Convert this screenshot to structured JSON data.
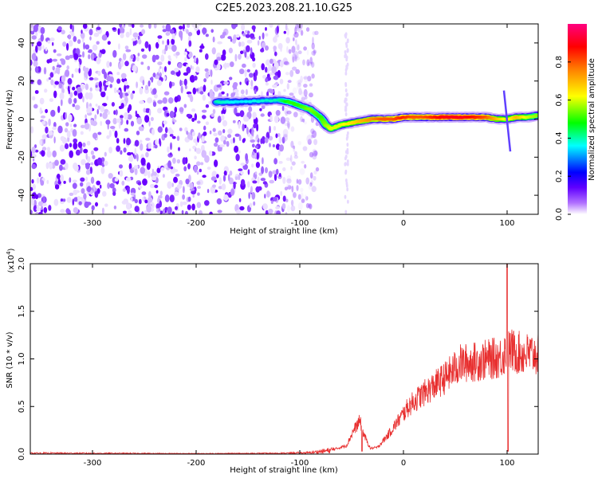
{
  "chart_data": [
    {
      "type": "heatmap",
      "title": "C2E5.2023.208.21.10.G25",
      "xlabel": "Height of straight line (km)",
      "ylabel": "Frequency (Hz)",
      "xlim": [
        -360,
        130
      ],
      "ylim": [
        -50,
        50
      ],
      "xticks": [
        -300,
        -200,
        -100,
        0,
        100
      ],
      "yticks": [
        -40,
        -20,
        0,
        20,
        40
      ],
      "grid": false,
      "colorbar": {
        "label": "Normalized spectral amplitude",
        "range": [
          0,
          1
        ],
        "ticks": [
          "0.0",
          "0.2",
          "0.4",
          "0.6",
          "0.8"
        ],
        "colormap": [
          "#ffffff",
          "#8000ff",
          "#0000ff",
          "#00ffff",
          "#00ff00",
          "#ffff00",
          "#ff8000",
          "#ff0000",
          "#ff0080"
        ]
      },
      "noise_region": {
        "x": [
          -360,
          -95
        ],
        "level": "0.2-0.4"
      },
      "ridge": [
        {
          "x": -180,
          "y": 9,
          "value": 0.4
        },
        {
          "x": -160,
          "y": 9,
          "value": 0.35
        },
        {
          "x": -120,
          "y": 10,
          "value": 0.4
        },
        {
          "x": -110,
          "y": 9,
          "value": 0.5
        },
        {
          "x": -100,
          "y": 7,
          "value": 0.5
        },
        {
          "x": -90,
          "y": 5,
          "value": 0.55
        },
        {
          "x": -80,
          "y": 1,
          "value": 0.5
        },
        {
          "x": -75,
          "y": -3,
          "value": 0.55
        },
        {
          "x": -70,
          "y": -5,
          "value": 0.6
        },
        {
          "x": -60,
          "y": -3,
          "value": 0.6
        },
        {
          "x": -50,
          "y": -2,
          "value": 0.65
        },
        {
          "x": -40,
          "y": -1,
          "value": 0.7
        },
        {
          "x": -30,
          "y": 0,
          "value": 0.75
        },
        {
          "x": -20,
          "y": 0,
          "value": 0.8
        },
        {
          "x": -10,
          "y": 0,
          "value": 0.8
        },
        {
          "x": 0,
          "y": 1,
          "value": 0.85
        },
        {
          "x": 10,
          "y": 1,
          "value": 0.8
        },
        {
          "x": 20,
          "y": 1,
          "value": 0.8
        },
        {
          "x": 30,
          "y": 1,
          "value": 0.85
        },
        {
          "x": 40,
          "y": 1,
          "value": 0.9
        },
        {
          "x": 50,
          "y": 1,
          "value": 0.9
        },
        {
          "x": 60,
          "y": 1,
          "value": 0.9
        },
        {
          "x": 70,
          "y": 1,
          "value": 0.85
        },
        {
          "x": 80,
          "y": 1,
          "value": 0.8
        },
        {
          "x": 90,
          "y": 0,
          "value": 0.7
        },
        {
          "x": 100,
          "y": 0,
          "value": 0.6
        },
        {
          "x": 110,
          "y": 1,
          "value": 0.7
        },
        {
          "x": 120,
          "y": 1,
          "value": 0.6
        },
        {
          "x": 130,
          "y": 2,
          "value": 0.55
        }
      ]
    },
    {
      "type": "line",
      "xlabel": "Height of straight line (km)",
      "ylabel": "SNR (10 * v/v)",
      "yscale_note": "(x10",
      "yscale_exp": "4",
      "scale_factor": 10000,
      "xlim": [
        -360,
        130
      ],
      "ylim": [
        0,
        20000
      ],
      "xticks": [
        -300,
        -200,
        -100,
        0,
        100
      ],
      "yticks": [
        "0.0",
        "0.5",
        "1.0",
        "1.5",
        "2.0"
      ],
      "ytick_values": [
        0,
        5000,
        10000,
        15000,
        20000
      ],
      "grid": false,
      "color": "#e83030",
      "envelope": [
        {
          "x": -360,
          "y": 100
        },
        {
          "x": -200,
          "y": 50
        },
        {
          "x": -120,
          "y": 80
        },
        {
          "x": -90,
          "y": 150
        },
        {
          "x": -70,
          "y": 400
        },
        {
          "x": -55,
          "y": 900
        },
        {
          "x": -48,
          "y": 2500
        },
        {
          "x": -42,
          "y": 3500
        },
        {
          "x": -38,
          "y": 2000
        },
        {
          "x": -32,
          "y": 600
        },
        {
          "x": -25,
          "y": 700
        },
        {
          "x": -15,
          "y": 2000
        },
        {
          "x": -5,
          "y": 3500
        },
        {
          "x": 5,
          "y": 5000
        },
        {
          "x": 15,
          "y": 6000
        },
        {
          "x": 25,
          "y": 6800
        },
        {
          "x": 40,
          "y": 8000
        },
        {
          "x": 55,
          "y": 9500
        },
        {
          "x": 70,
          "y": 9700
        },
        {
          "x": 85,
          "y": 10000
        },
        {
          "x": 95,
          "y": 10200
        },
        {
          "x": 100,
          "y": 11000
        },
        {
          "x": 115,
          "y": 10500
        },
        {
          "x": 130,
          "y": 10500
        }
      ],
      "dips": [
        {
          "x": -40,
          "y": 300
        },
        {
          "x": 101,
          "y": 300
        }
      ],
      "peak": {
        "x": 100,
        "y": 20000
      }
    }
  ]
}
